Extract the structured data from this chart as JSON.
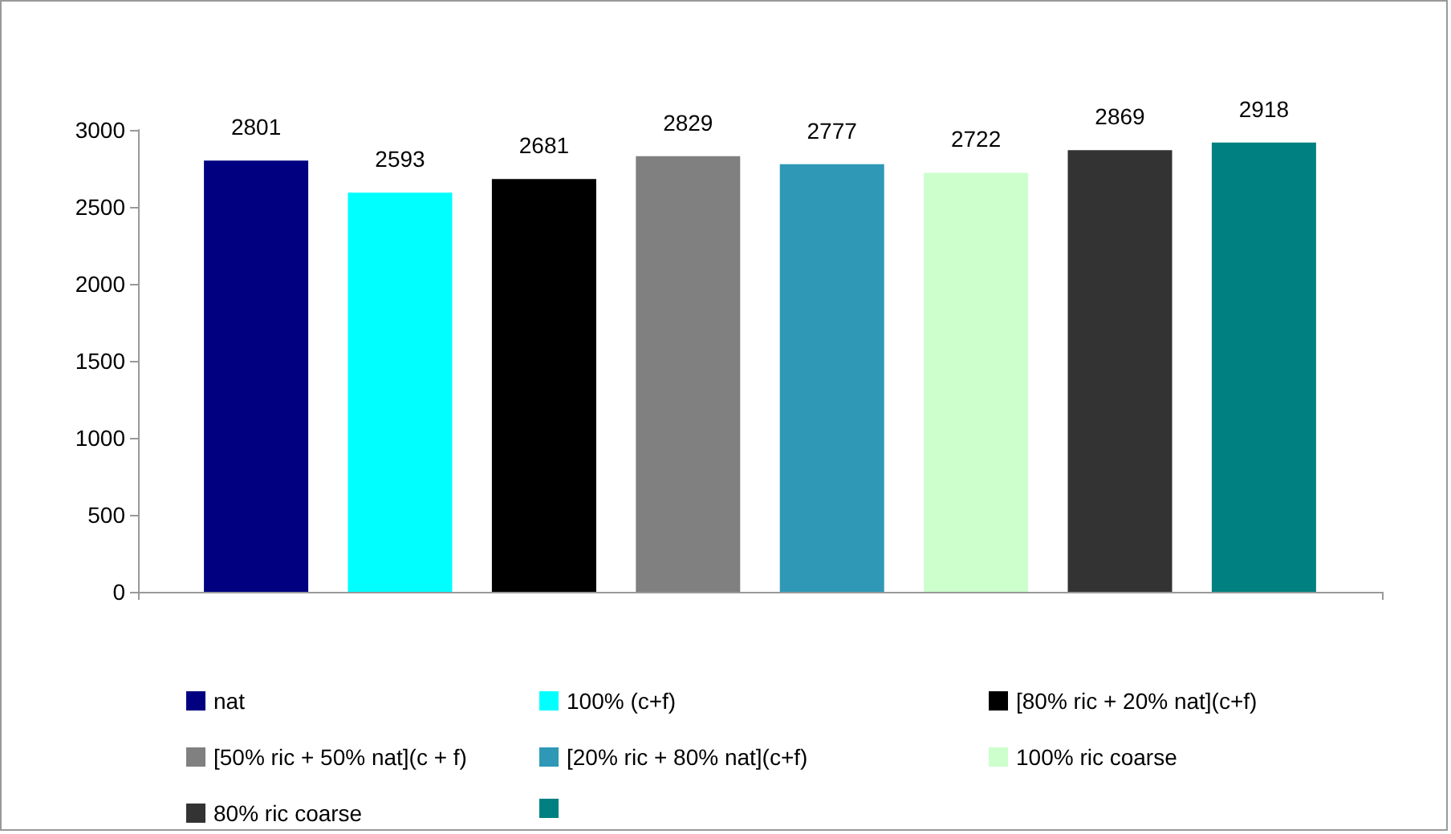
{
  "chart_data": {
    "type": "bar",
    "categories": [
      null
    ],
    "series": [
      {
        "name": "nat",
        "color": "#000080",
        "values": [
          2801
        ]
      },
      {
        "name": "100% (c+f)",
        "color": "#00ffff",
        "values": [
          2593
        ]
      },
      {
        "name": "[80% ric + 20% nat](c+f)",
        "color": "#000000",
        "values": [
          2681
        ]
      },
      {
        "name": "[50% ric + 50% nat](c + f)",
        "color": "#808080",
        "values": [
          2829
        ]
      },
      {
        "name": "[20% ric + 80% nat](c+f)",
        "color": "#2e98b6",
        "values": [
          2777
        ]
      },
      {
        "name": "100% ric coarse",
        "color": "#ccffcc",
        "values": [
          2722
        ]
      },
      {
        "name": "80% ric coarse",
        "color": "#333333",
        "values": [
          2869
        ]
      },
      {
        "color": "#008080",
        "values": [
          2918
        ]
      }
    ],
    "ylim": [
      0,
      3000
    ],
    "yticks": [
      0,
      500,
      1000,
      1500,
      2000,
      2500,
      3000
    ],
    "grid": false,
    "legend": "bottom",
    "data_labels": true
  }
}
